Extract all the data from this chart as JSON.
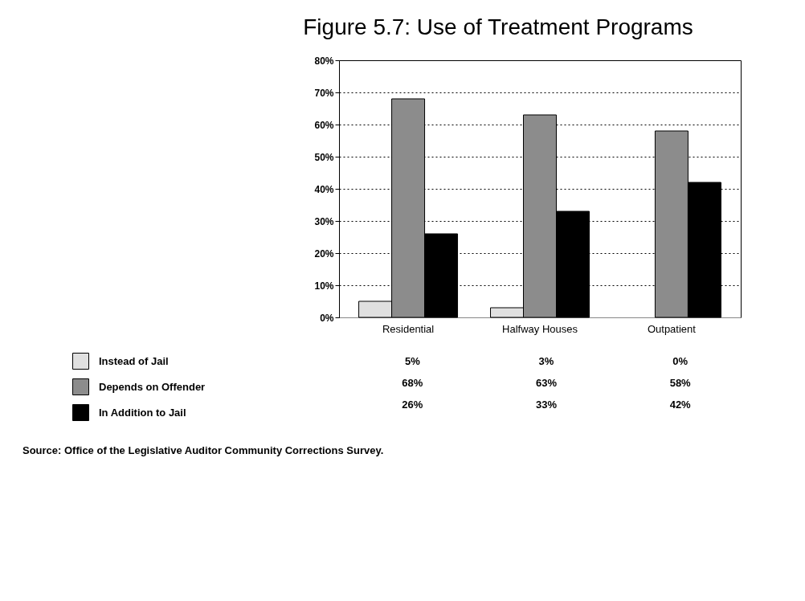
{
  "chart_data": {
    "type": "bar",
    "title": "Figure 5.7:  Use of Treatment Programs",
    "categories": [
      "Residential",
      "Halfway Houses",
      "Outpatient"
    ],
    "series": [
      {
        "name": "Instead of Jail",
        "color": "#e0e0e0",
        "values": [
          5,
          3,
          0
        ],
        "value_labels": [
          "5%",
          "3%",
          "0%"
        ]
      },
      {
        "name": "Depends on Offender",
        "color": "#8c8c8c",
        "values": [
          68,
          63,
          58
        ],
        "value_labels": [
          "68%",
          "63%",
          "58%"
        ]
      },
      {
        "name": "In Addition to Jail",
        "color": "#000000",
        "values": [
          26,
          33,
          42
        ],
        "value_labels": [
          "26%",
          "33%",
          "42%"
        ]
      }
    ],
    "ylim": [
      0,
      80
    ],
    "yticks": [
      {
        "value": 0,
        "label": "0%"
      },
      {
        "value": 10,
        "label": "10%"
      },
      {
        "value": 20,
        "label": "20%"
      },
      {
        "value": 30,
        "label": "30%"
      },
      {
        "value": 40,
        "label": "40%"
      },
      {
        "value": 50,
        "label": "50%"
      },
      {
        "value": 60,
        "label": "60%"
      },
      {
        "value": 70,
        "label": "70%"
      },
      {
        "value": 80,
        "label": "80%"
      }
    ],
    "grid": "y",
    "legend": "bottom",
    "annotations": [
      "Source:  Office of the Legislative Auditor Community Corrections Survey."
    ]
  }
}
